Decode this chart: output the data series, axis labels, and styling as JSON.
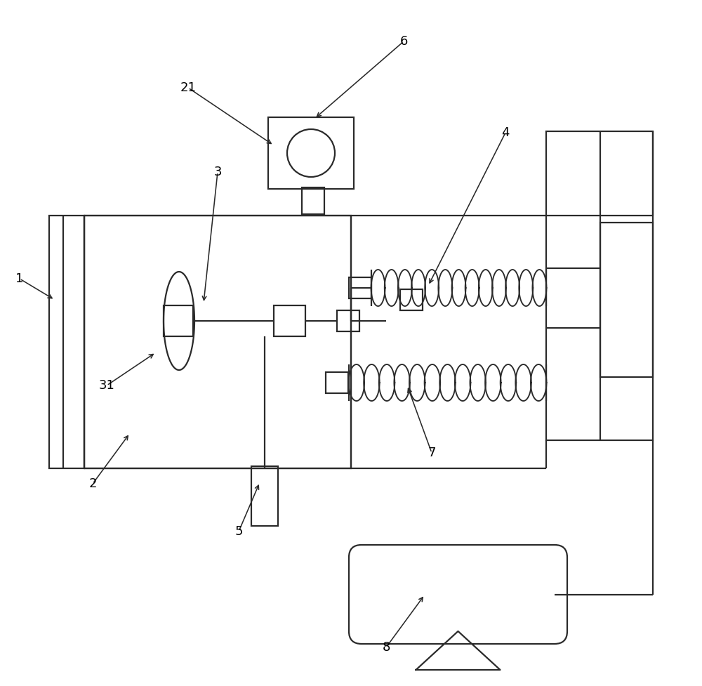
{
  "background_color": "#ffffff",
  "lc": "#2a2a2a",
  "lw": 1.6,
  "fig_width": 10.0,
  "fig_height": 9.77,
  "xlim": [
    0,
    10
  ],
  "ylim": [
    0,
    9.77
  ]
}
